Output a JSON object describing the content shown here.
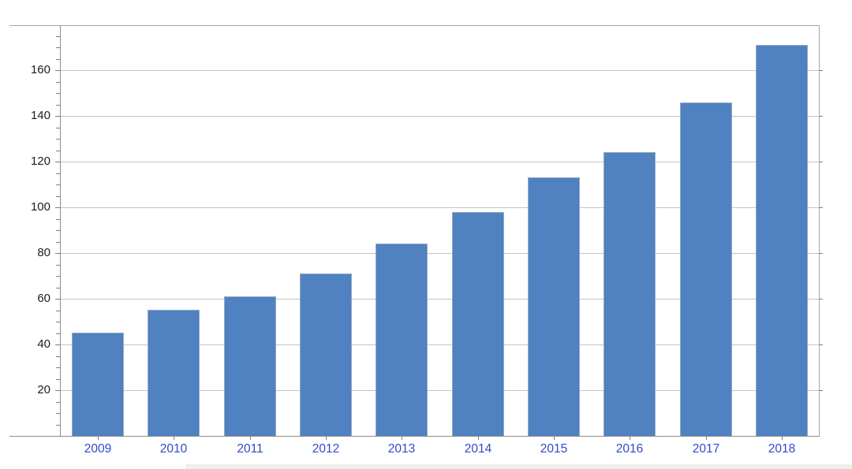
{
  "chart_data": {
    "type": "bar",
    "title": "",
    "xlabel": "",
    "ylabel": "",
    "categories": [
      "2009",
      "2010",
      "2011",
      "2012",
      "2013",
      "2014",
      "2015",
      "2016",
      "2017",
      "2018"
    ],
    "values": [
      45,
      55,
      61,
      71,
      84,
      98,
      113,
      124,
      146,
      171
    ],
    "ylim": [
      0,
      180
    ],
    "yticks": [
      20,
      40,
      60,
      80,
      100,
      120,
      140,
      160
    ],
    "y_minor_tick_step": 5,
    "grid": true,
    "legend": "none",
    "colors": {
      "bar_fill": "#5081c0",
      "bar_edge": "#93a9c6",
      "gridline": "#c3c3c3",
      "frame": "#a6a6a6",
      "axis": "#8d8d8d",
      "tick": "#7f7f7f",
      "y_label_text": "#1c1c1c",
      "x_label_text": "#2f4bc7",
      "background": "#ffffff",
      "bottom_divider": "#edefec"
    }
  }
}
